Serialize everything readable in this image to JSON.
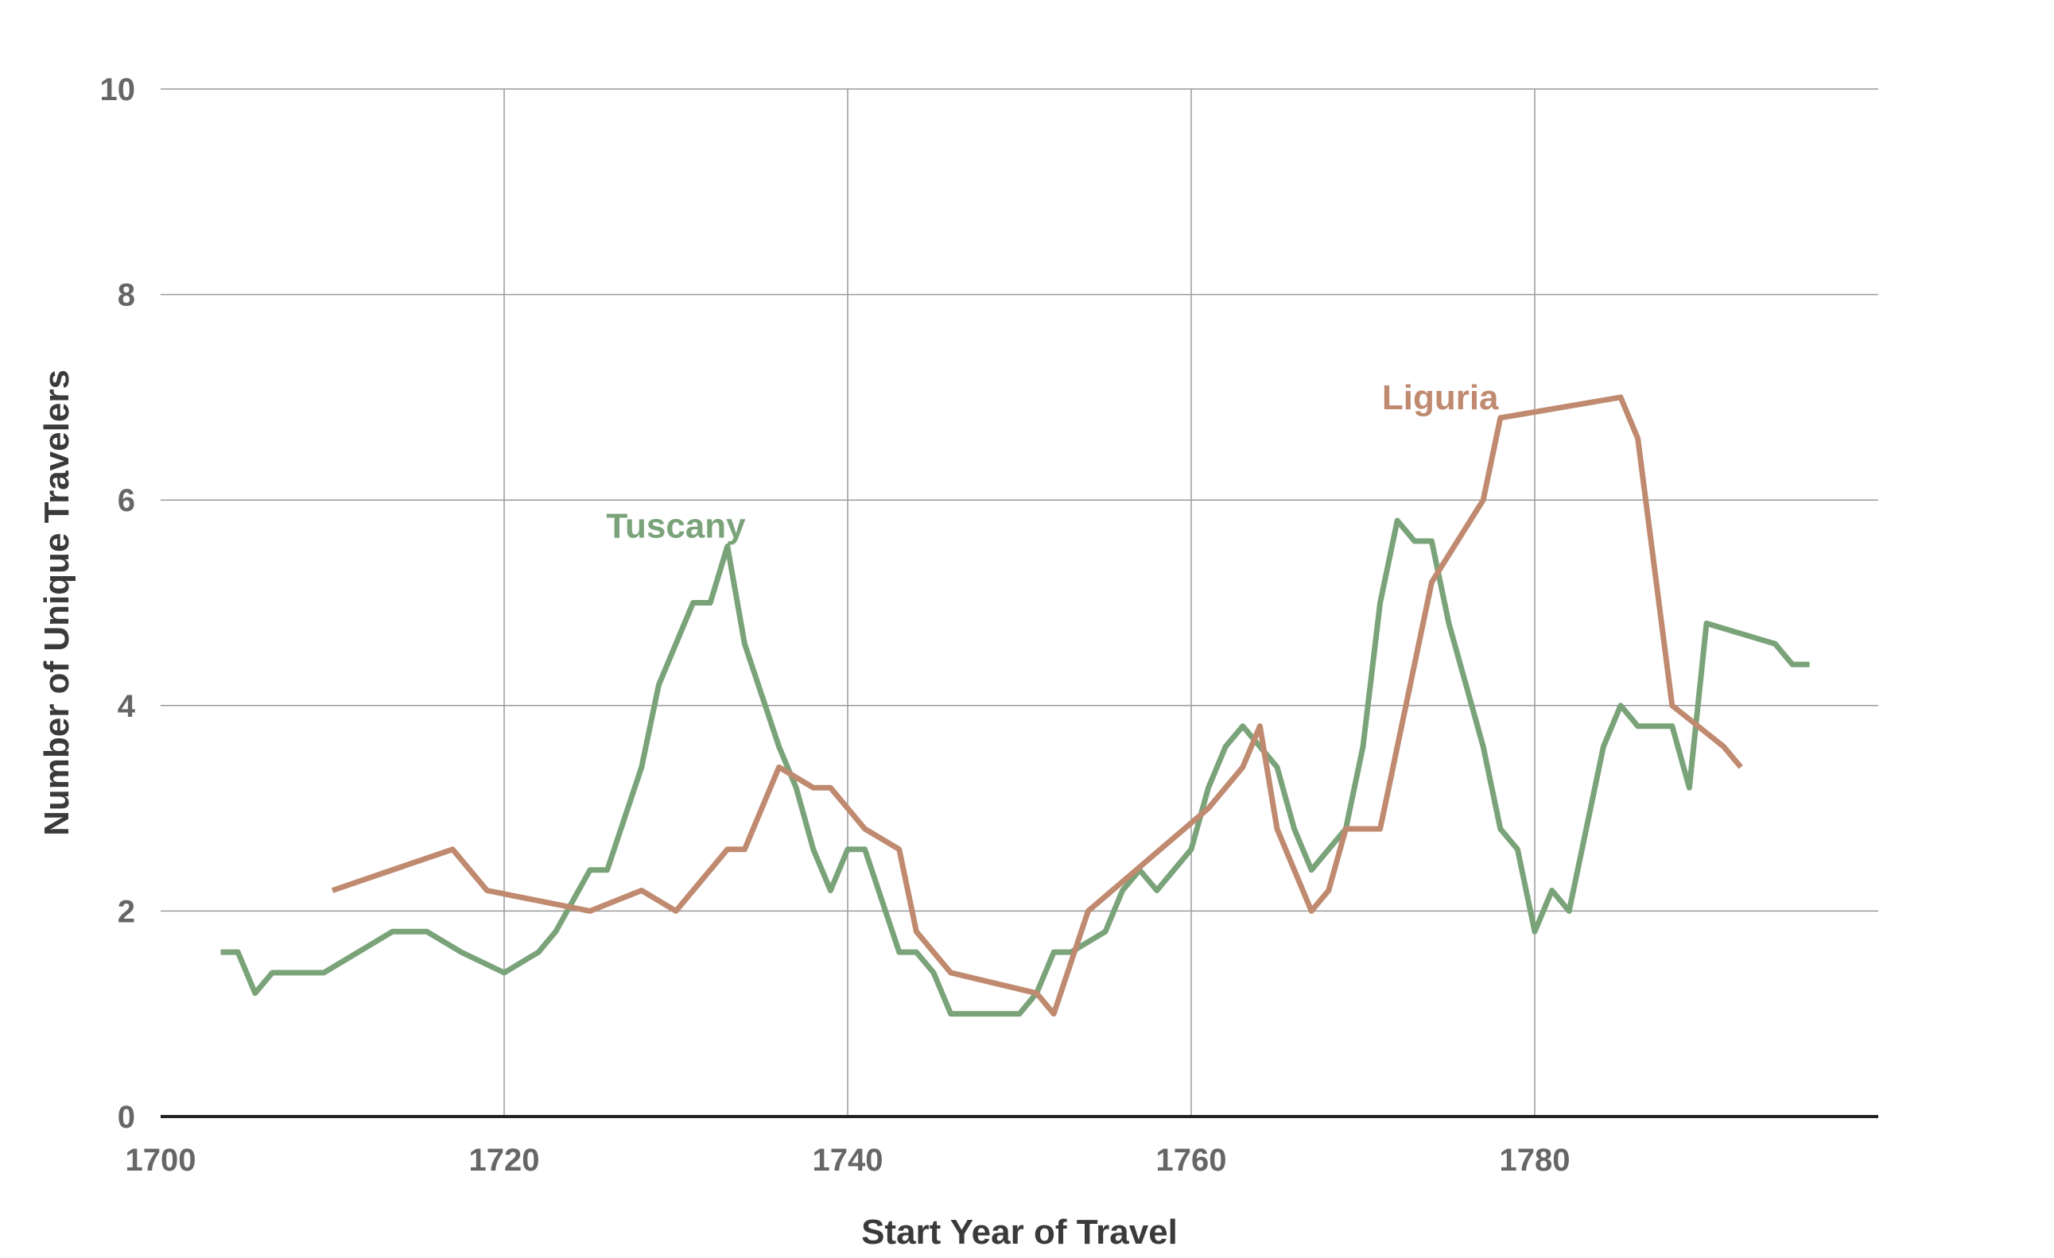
{
  "chart_data": {
    "type": "line",
    "title": "",
    "xlabel": "Start Year of Travel",
    "ylabel": "Number of Unique Travelers",
    "xlim": [
      1700,
      1800
    ],
    "ylim": [
      0,
      10
    ],
    "x_ticks": [
      1700,
      1720,
      1740,
      1760,
      1780
    ],
    "y_ticks": [
      0,
      2,
      4,
      6,
      8,
      10
    ],
    "grid": true,
    "legend": "none (direct labels)",
    "series": [
      {
        "name": "Tuscany",
        "color": "#7aa37a",
        "label_at": [
          1730,
          5.75
        ],
        "x": [
          1703.5,
          1704.5,
          1705.5,
          1706.5,
          1707.5,
          1709.5,
          1713.5,
          1715.5,
          1717.5,
          1720,
          1722,
          1723,
          1724,
          1725,
          1726,
          1727,
          1728,
          1729,
          1731,
          1732,
          1733,
          1734,
          1735,
          1736,
          1737,
          1738,
          1739,
          1740,
          1741,
          1742,
          1743,
          1744,
          1745,
          1746,
          1747,
          1750,
          1751,
          1752,
          1753,
          1754,
          1755,
          1756,
          1757,
          1758,
          1760,
          1761,
          1762,
          1763,
          1764,
          1765,
          1766,
          1767,
          1768,
          1769,
          1770,
          1771,
          1772,
          1773,
          1774,
          1775,
          1776,
          1777,
          1778,
          1779,
          1780,
          1781,
          1782,
          1783,
          1784,
          1785,
          1786,
          1788,
          1789,
          1790,
          1794,
          1795,
          1796
        ],
        "y": [
          1.6,
          1.6,
          1.2,
          1.4,
          1.4,
          1.4,
          1.8,
          1.8,
          1.6,
          1.4,
          1.6,
          1.8,
          2.1,
          2.4,
          2.4,
          2.9,
          3.4,
          4.2,
          5.0,
          5.0,
          5.55,
          4.6,
          4.1,
          3.6,
          3.2,
          2.6,
          2.2,
          2.6,
          2.6,
          2.1,
          1.6,
          1.6,
          1.4,
          1.0,
          1.0,
          1.0,
          1.2,
          1.6,
          1.6,
          1.7,
          1.8,
          2.2,
          2.4,
          2.2,
          2.6,
          3.2,
          3.6,
          3.8,
          3.6,
          3.4,
          2.8,
          2.4,
          2.6,
          2.8,
          3.6,
          5.0,
          5.8,
          5.6,
          5.6,
          4.8,
          4.2,
          3.6,
          2.8,
          2.6,
          1.8,
          2.2,
          2.0,
          2.8,
          3.6,
          4.0,
          3.8,
          3.8,
          3.2,
          4.8,
          4.6,
          4.4,
          4.4
        ]
      },
      {
        "name": "Liguria",
        "color": "#bf8a6f",
        "label_at": [
          1774.5,
          7.0
        ],
        "x": [
          1710,
          1717,
          1719,
          1725,
          1728,
          1730,
          1733,
          1734,
          1736,
          1737,
          1738,
          1739,
          1741,
          1743,
          1744,
          1746,
          1751,
          1752,
          1754,
          1761,
          1763,
          1764,
          1765,
          1767,
          1768,
          1769,
          1771,
          1774,
          1777,
          1778,
          1785,
          1786,
          1788,
          1791,
          1792
        ],
        "y": [
          2.2,
          2.6,
          2.2,
          2.0,
          2.2,
          2.0,
          2.6,
          2.6,
          3.4,
          3.3,
          3.2,
          3.2,
          2.8,
          2.6,
          1.8,
          1.4,
          1.2,
          1.0,
          2.0,
          3.0,
          3.4,
          3.8,
          2.8,
          2.0,
          2.2,
          2.8,
          2.8,
          5.2,
          6.0,
          6.8,
          7.0,
          6.6,
          4.0,
          3.6,
          3.4
        ]
      }
    ]
  }
}
